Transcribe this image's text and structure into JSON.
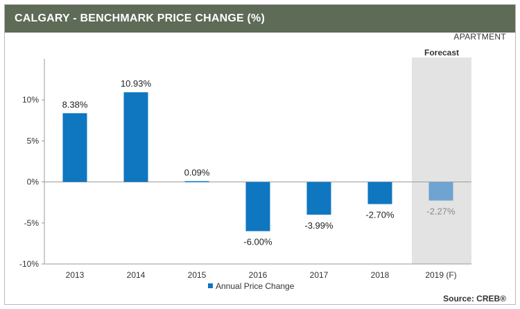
{
  "header": {
    "title": "CALGARY - BENCHMARK PRICE CHANGE (%)"
  },
  "subtitle": "APARTMENT",
  "source": "Source: CREB®",
  "colors": {
    "header_bg": "#5e6b57",
    "bar": "#0f76c0",
    "forecast_bar": "#6fa3d1",
    "forecast_bg": "#e3e3e3",
    "forecast_label_text": "#8a8a8a"
  },
  "chart_data": {
    "type": "bar",
    "categories": [
      "2013",
      "2014",
      "2015",
      "2016",
      "2017",
      "2018",
      "2019 (F)"
    ],
    "series": [
      {
        "name": "Annual Price Change",
        "values": [
          8.38,
          10.93,
          0.09,
          -6.0,
          -3.99,
          -2.7,
          -2.27
        ],
        "labels": [
          "8.38%",
          "10.93%",
          "0.09%",
          "-6.00%",
          "-3.99%",
          "-2.70%",
          "-2.27%"
        ]
      }
    ],
    "forecast_index": 6,
    "forecast_label": "Forecast",
    "yticks": [
      10,
      5,
      0,
      -5,
      -10
    ],
    "ytick_labels": [
      "10%",
      "5%",
      "0%",
      "-5%",
      "-10%"
    ],
    "ylim": [
      -10,
      15
    ],
    "legend": "bottom-center",
    "grid": false
  }
}
